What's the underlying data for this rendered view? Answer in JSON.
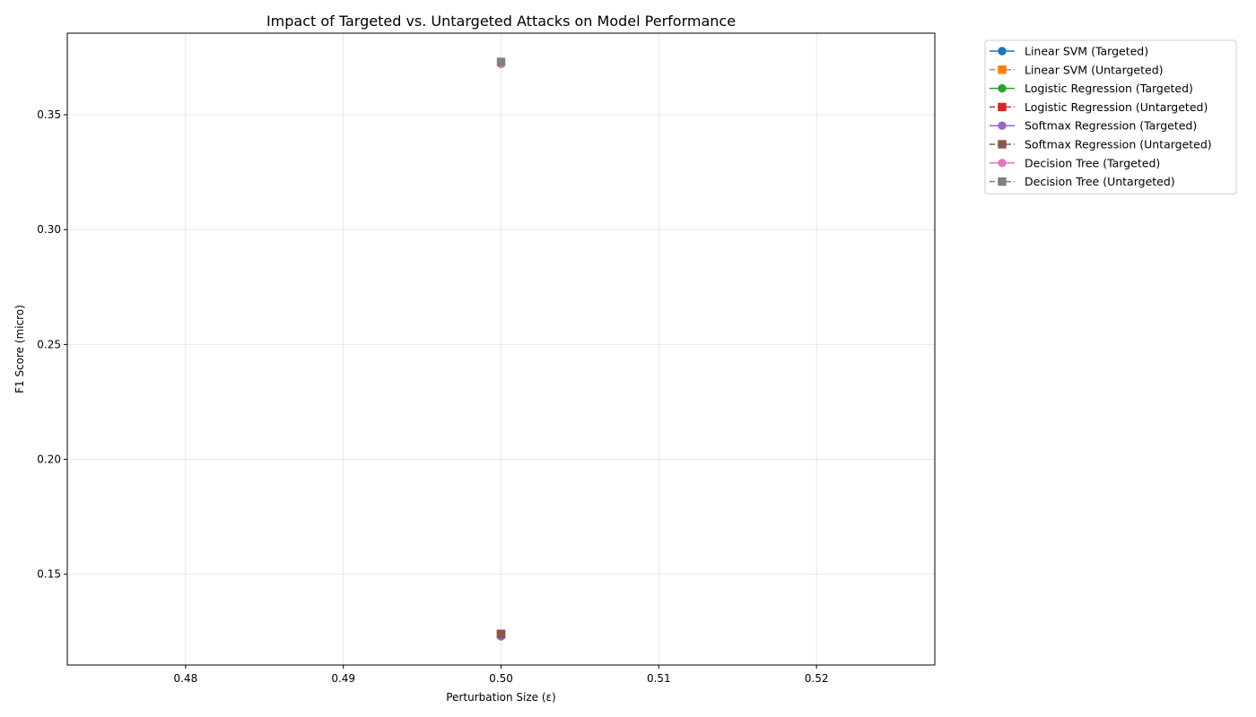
{
  "chart_data": {
    "type": "line",
    "title": "Impact of Targeted vs. Untargeted Attacks on Model Performance",
    "xlabel": "Perturbation Size (ε)",
    "ylabel": "F1 Score (micro)",
    "xlim": [
      0.4725,
      0.5275
    ],
    "ylim": [
      0.1105,
      0.3855
    ],
    "xticks": [
      0.48,
      0.49,
      0.5,
      0.51,
      0.52
    ],
    "xtick_labels": [
      "0.48",
      "0.49",
      "0.50",
      "0.51",
      "0.52"
    ],
    "yticks": [
      0.15,
      0.2,
      0.25,
      0.3,
      0.35
    ],
    "ytick_labels": [
      "0.15",
      "0.20",
      "0.25",
      "0.30",
      "0.35"
    ],
    "grid": true,
    "legend_position": "outside-top-right",
    "series": [
      {
        "name": "Linear SVM (Targeted)",
        "color": "#1f77b4",
        "marker": "circle",
        "linestyle": "solid",
        "x": [
          0.5
        ],
        "y": [
          0.123
        ]
      },
      {
        "name": "Linear SVM (Untargeted)",
        "color": "#ff7f0e",
        "marker": "square",
        "linestyle": "dashed",
        "x": [
          0.5
        ],
        "y": [
          0.124
        ]
      },
      {
        "name": "Logistic Regression (Targeted)",
        "color": "#2ca02c",
        "marker": "circle",
        "linestyle": "solid",
        "x": [
          0.5
        ],
        "y": [
          0.123
        ]
      },
      {
        "name": "Logistic Regression (Untargeted)",
        "color": "#d62728",
        "marker": "square",
        "linestyle": "dashed",
        "x": [
          0.5
        ],
        "y": [
          0.124
        ]
      },
      {
        "name": "Softmax Regression (Targeted)",
        "color": "#9467bd",
        "marker": "circle",
        "linestyle": "solid",
        "x": [
          0.5
        ],
        "y": [
          0.123
        ]
      },
      {
        "name": "Softmax Regression (Untargeted)",
        "color": "#8c564b",
        "marker": "square",
        "linestyle": "dashed",
        "x": [
          0.5
        ],
        "y": [
          0.124
        ]
      },
      {
        "name": "Decision Tree (Targeted)",
        "color": "#e377c2",
        "marker": "circle",
        "linestyle": "solid",
        "x": [
          0.5
        ],
        "y": [
          0.372
        ]
      },
      {
        "name": "Decision Tree (Untargeted)",
        "color": "#7f7f7f",
        "marker": "square",
        "linestyle": "dashed",
        "x": [
          0.5
        ],
        "y": [
          0.373
        ]
      }
    ]
  }
}
